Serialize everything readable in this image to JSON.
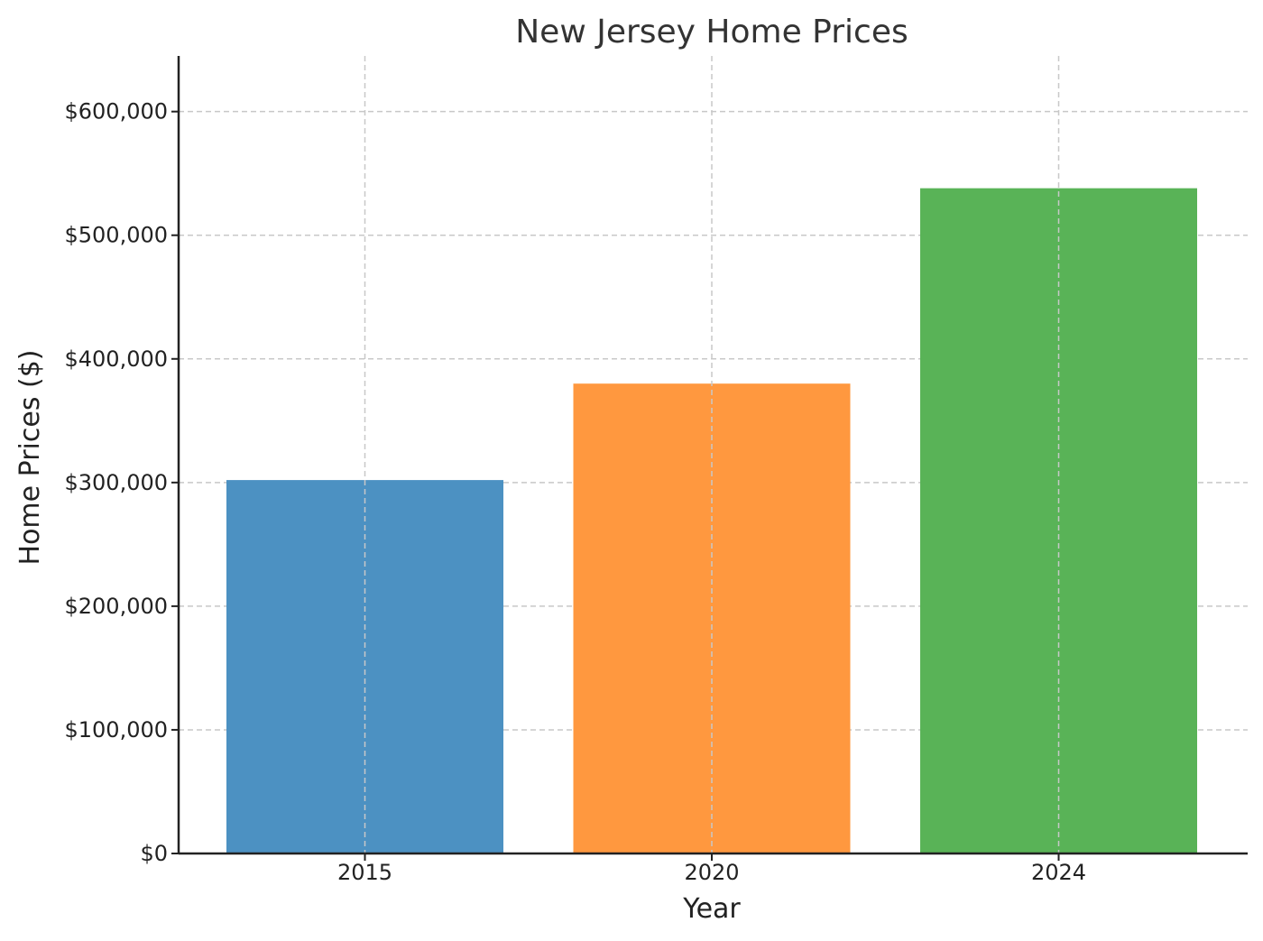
{
  "chart_data": {
    "type": "bar",
    "title": "New Jersey Home Prices",
    "xlabel": "Year",
    "ylabel": "Home Prices ($)",
    "categories": [
      "2015",
      "2020",
      "2024"
    ],
    "values": [
      302000,
      380000,
      538000
    ],
    "colors": [
      "#4c91c2",
      "#ff983f",
      "#59b357"
    ],
    "ylim": [
      0,
      645000
    ],
    "yticks": [
      0,
      100000,
      200000,
      300000,
      400000,
      500000,
      600000
    ],
    "ytick_labels": [
      "$0",
      "$100,000",
      "$200,000",
      "$300,000",
      "$400,000",
      "$500,000",
      "$600,000"
    ],
    "grid": true
  }
}
